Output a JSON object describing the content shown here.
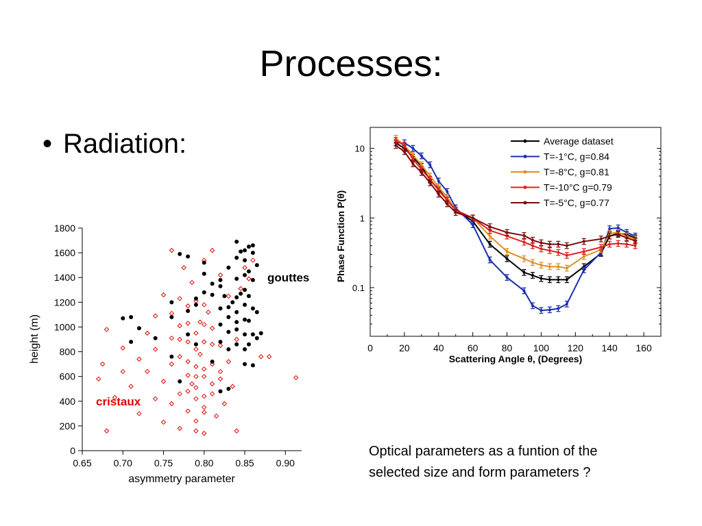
{
  "slide": {
    "title": "Processes:",
    "bullet": "Radiation:",
    "caption_line1": "Optical parameters as a funtion of the",
    "caption_line2": "selected size and form parameters ?"
  },
  "chart_data": [
    {
      "type": "scatter",
      "xlabel": "asymmetry parameter",
      "ylabel": "height (m)",
      "xlim": [
        0.65,
        0.92
      ],
      "ylim": [
        0,
        1800
      ],
      "xticks": [
        "0.65",
        "0.70",
        "0.75",
        "0.80",
        "0.85",
        "0.90"
      ],
      "yticks": [
        "0",
        "200",
        "400",
        "600",
        "800",
        "1000",
        "1200",
        "1400",
        "1600",
        "1800"
      ],
      "grid": false,
      "annotations": [
        "gouttes",
        "cristaux"
      ],
      "colors": {
        "gouttes": "#000000",
        "cristaux": "#e00000"
      },
      "series": [
        {
          "name": "gouttes",
          "marker": "filled-circle",
          "points": [
            [
              0.7,
              1070
            ],
            [
              0.71,
              1080
            ],
            [
              0.71,
              880
            ],
            [
              0.72,
              990
            ],
            [
              0.74,
              910
            ],
            [
              0.76,
              1200
            ],
            [
              0.76,
              1080
            ],
            [
              0.77,
              1590
            ],
            [
              0.78,
              1570
            ],
            [
              0.78,
              1130
            ],
            [
              0.78,
              940
            ],
            [
              0.79,
              1230
            ],
            [
              0.79,
              1180
            ],
            [
              0.8,
              1280
            ],
            [
              0.8,
              1430
            ],
            [
              0.8,
              1520
            ],
            [
              0.81,
              1350
            ],
            [
              0.81,
              1260
            ],
            [
              0.82,
              1380
            ],
            [
              0.82,
              1330
            ],
            [
              0.82,
              1150
            ],
            [
              0.82,
              1020
            ],
            [
              0.82,
              880
            ],
            [
              0.83,
              1080
            ],
            [
              0.83,
              960
            ],
            [
              0.83,
              820
            ],
            [
              0.83,
              1480
            ],
            [
              0.84,
              1240
            ],
            [
              0.84,
              1120
            ],
            [
              0.84,
              980
            ],
            [
              0.84,
              860
            ],
            [
              0.84,
              1560
            ],
            [
              0.84,
              1690
            ],
            [
              0.845,
              1610
            ],
            [
              0.85,
              1540
            ],
            [
              0.85,
              1420
            ],
            [
              0.85,
              1300
            ],
            [
              0.85,
              1180
            ],
            [
              0.85,
              1060
            ],
            [
              0.85,
              940
            ],
            [
              0.85,
              820
            ],
            [
              0.85,
              700
            ],
            [
              0.855,
              1650
            ],
            [
              0.855,
              1450
            ],
            [
              0.855,
              1250
            ],
            [
              0.855,
              1050
            ],
            [
              0.855,
              860
            ],
            [
              0.86,
              1600
            ],
            [
              0.86,
              1380
            ],
            [
              0.86,
              1150
            ],
            [
              0.86,
              940
            ],
            [
              0.86,
              690
            ],
            [
              0.865,
              1500
            ],
            [
              0.865,
              1120
            ],
            [
              0.865,
              910
            ],
            [
              0.87,
              950
            ],
            [
              0.82,
              480
            ],
            [
              0.83,
              500
            ],
            [
              0.76,
              760
            ],
            [
              0.77,
              560
            ],
            [
              0.79,
              860
            ],
            [
              0.81,
              720
            ],
            [
              0.84,
              1390
            ],
            [
              0.845,
              1270
            ],
            [
              0.85,
              1620
            ],
            [
              0.86,
              1660
            ],
            [
              0.835,
              1200
            ],
            [
              0.825,
              1250
            ],
            [
              0.84,
              1040
            ],
            [
              0.83,
              1160
            ]
          ]
        },
        {
          "name": "cristaux",
          "marker": "open-diamond",
          "points": [
            [
              0.67,
              580
            ],
            [
              0.675,
              700
            ],
            [
              0.68,
              160
            ],
            [
              0.68,
              980
            ],
            [
              0.69,
              430
            ],
            [
              0.7,
              640
            ],
            [
              0.7,
              830
            ],
            [
              0.71,
              520
            ],
            [
              0.72,
              740
            ],
            [
              0.72,
              300
            ],
            [
              0.73,
              950
            ],
            [
              0.73,
              640
            ],
            [
              0.74,
              420
            ],
            [
              0.74,
              1090
            ],
            [
              0.74,
              820
            ],
            [
              0.75,
              560
            ],
            [
              0.75,
              230
            ],
            [
              0.75,
              1260
            ],
            [
              0.76,
              700
            ],
            [
              0.76,
              910
            ],
            [
              0.76,
              380
            ],
            [
              0.76,
              1620
            ],
            [
              0.77,
              460
            ],
            [
              0.77,
              1010
            ],
            [
              0.77,
              760
            ],
            [
              0.77,
              180
            ],
            [
              0.775,
              1480
            ],
            [
              0.78,
              610
            ],
            [
              0.78,
              880
            ],
            [
              0.78,
              320
            ],
            [
              0.78,
              1170
            ],
            [
              0.785,
              540
            ],
            [
              0.785,
              1360
            ],
            [
              0.79,
              240
            ],
            [
              0.79,
              420
            ],
            [
              0.79,
              680
            ],
            [
              0.79,
              950
            ],
            [
              0.79,
              1210
            ],
            [
              0.79,
              160
            ],
            [
              0.795,
              780
            ],
            [
              0.795,
              1040
            ],
            [
              0.8,
              350
            ],
            [
              0.8,
              600
            ],
            [
              0.8,
              880
            ],
            [
              0.8,
              1540
            ],
            [
              0.8,
              140
            ],
            [
              0.805,
              1120
            ],
            [
              0.81,
              460
            ],
            [
              0.81,
              700
            ],
            [
              0.81,
              990
            ],
            [
              0.81,
              1620
            ],
            [
              0.815,
              280
            ],
            [
              0.82,
              580
            ],
            [
              0.82,
              850
            ],
            [
              0.82,
              1420
            ],
            [
              0.825,
              380
            ],
            [
              0.83,
              720
            ],
            [
              0.83,
              1250
            ],
            [
              0.835,
              520
            ],
            [
              0.84,
              900
            ],
            [
              0.84,
              160
            ],
            [
              0.845,
              1310
            ],
            [
              0.85,
              1480
            ],
            [
              0.855,
              1390
            ],
            [
              0.86,
              1540
            ],
            [
              0.87,
              760
            ],
            [
              0.88,
              760
            ],
            [
              0.913,
              590
            ],
            [
              0.76,
              1110
            ],
            [
              0.77,
              1230
            ],
            [
              0.78,
              720
            ],
            [
              0.79,
              510
            ],
            [
              0.8,
              310
            ],
            [
              0.8,
              1020
            ],
            [
              0.81,
              860
            ],
            [
              0.79,
              600
            ],
            [
              0.78,
              480
            ],
            [
              0.8,
              660
            ],
            [
              0.81,
              540
            ],
            [
              0.79,
              820
            ],
            [
              0.8,
              440
            ],
            [
              0.78,
              1030
            ],
            [
              0.77,
              900
            ],
            [
              0.82,
              640
            ],
            [
              0.8,
              1180
            ]
          ]
        }
      ]
    },
    {
      "type": "line",
      "xlabel": "Scattering Angle θ, (Degrees)",
      "ylabel": "Phase Function P(θ)",
      "xscale": "linear",
      "yscale": "log",
      "xlim": [
        0,
        170
      ],
      "ylim": [
        0.02,
        20
      ],
      "xticks": [
        "0",
        "20",
        "40",
        "60",
        "80",
        "100",
        "120",
        "140",
        "160"
      ],
      "yticks": [
        "0.1",
        "1",
        "10"
      ],
      "grid": false,
      "legend_position": "top-right",
      "x": [
        15,
        20,
        25,
        30,
        35,
        40,
        45,
        50,
        60,
        70,
        80,
        90,
        95,
        100,
        105,
        110,
        115,
        125,
        135,
        140,
        145,
        150,
        155
      ],
      "series": [
        {
          "name": "Average dataset",
          "color": "#000000",
          "values": [
            12,
            10,
            7.5,
            5.5,
            3.5,
            2.6,
            1.8,
            1.3,
            0.9,
            0.42,
            0.26,
            0.165,
            0.15,
            0.135,
            0.13,
            0.13,
            0.13,
            0.2,
            0.31,
            0.55,
            0.6,
            0.58,
            0.52
          ]
        },
        {
          "name": "T=-1°C, g=0.84",
          "color": "#1a2db5",
          "values": [
            12,
            12,
            10,
            7.8,
            5.8,
            3.4,
            2.4,
            1.4,
            0.8,
            0.25,
            0.14,
            0.09,
            0.055,
            0.047,
            0.048,
            0.05,
            0.058,
            0.18,
            0.32,
            0.7,
            0.72,
            0.62,
            0.55
          ]
        },
        {
          "name": "T=-8°C, g=0.81",
          "color": "#e09020",
          "values": [
            14,
            11,
            8,
            5.8,
            4,
            2.8,
            2,
            1.3,
            1,
            0.55,
            0.33,
            0.26,
            0.23,
            0.21,
            0.2,
            0.2,
            0.19,
            0.28,
            0.35,
            0.6,
            0.62,
            0.55,
            0.5
          ]
        },
        {
          "name": "T=-10°C g=0.79",
          "color": "#e02020",
          "values": [
            13,
            11,
            7,
            5,
            3.6,
            2.5,
            1.8,
            1.3,
            1,
            0.66,
            0.55,
            0.45,
            0.4,
            0.36,
            0.34,
            0.32,
            0.29,
            0.33,
            0.38,
            0.42,
            0.43,
            0.42,
            0.4
          ]
        },
        {
          "name": "T=-5°C, g=0.77",
          "color": "#7a0a0a",
          "values": [
            11,
            9,
            6,
            4.5,
            3.2,
            2.2,
            1.6,
            1.2,
            1,
            0.75,
            0.62,
            0.56,
            0.48,
            0.44,
            0.42,
            0.42,
            0.4,
            0.46,
            0.5,
            0.55,
            0.58,
            0.52,
            0.47
          ]
        }
      ]
    }
  ]
}
